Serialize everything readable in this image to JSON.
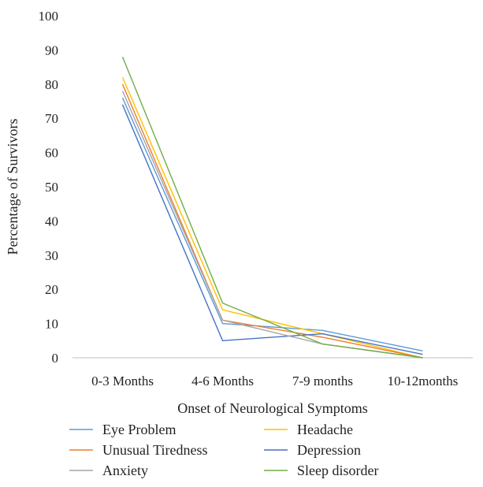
{
  "chart_data": {
    "type": "line",
    "title": "",
    "xlabel": "Onset of Neurological Symptoms",
    "ylabel": "Percentage of Survivors",
    "ylim": [
      0,
      100
    ],
    "yticks": [
      "0",
      "10",
      "20",
      "30",
      "40",
      "50",
      "60",
      "70",
      "80",
      "90",
      "100"
    ],
    "categories": [
      "0-3 Months",
      "4-6 Months",
      "7-9 months",
      "10-12months"
    ],
    "grid": false,
    "legend_position": "bottom",
    "series": [
      {
        "name": "Eye Problem",
        "color": "#5b9bd5",
        "values": [
          76,
          10,
          8,
          2
        ]
      },
      {
        "name": "Headache",
        "color": "#ffc000",
        "values": [
          82,
          14,
          7,
          0
        ]
      },
      {
        "name": "Unusual Tiredness",
        "color": "#ed7d31",
        "values": [
          80,
          11,
          6,
          0
        ]
      },
      {
        "name": "Depression",
        "color": "#4472c4",
        "values": [
          74,
          5,
          7,
          1
        ]
      },
      {
        "name": "Anxiety",
        "color": "#a5a5a5",
        "values": [
          78,
          11,
          4,
          0
        ]
      },
      {
        "name": "Sleep disorder",
        "color": "#70ad47",
        "values": [
          88,
          16,
          4,
          0
        ]
      }
    ]
  }
}
